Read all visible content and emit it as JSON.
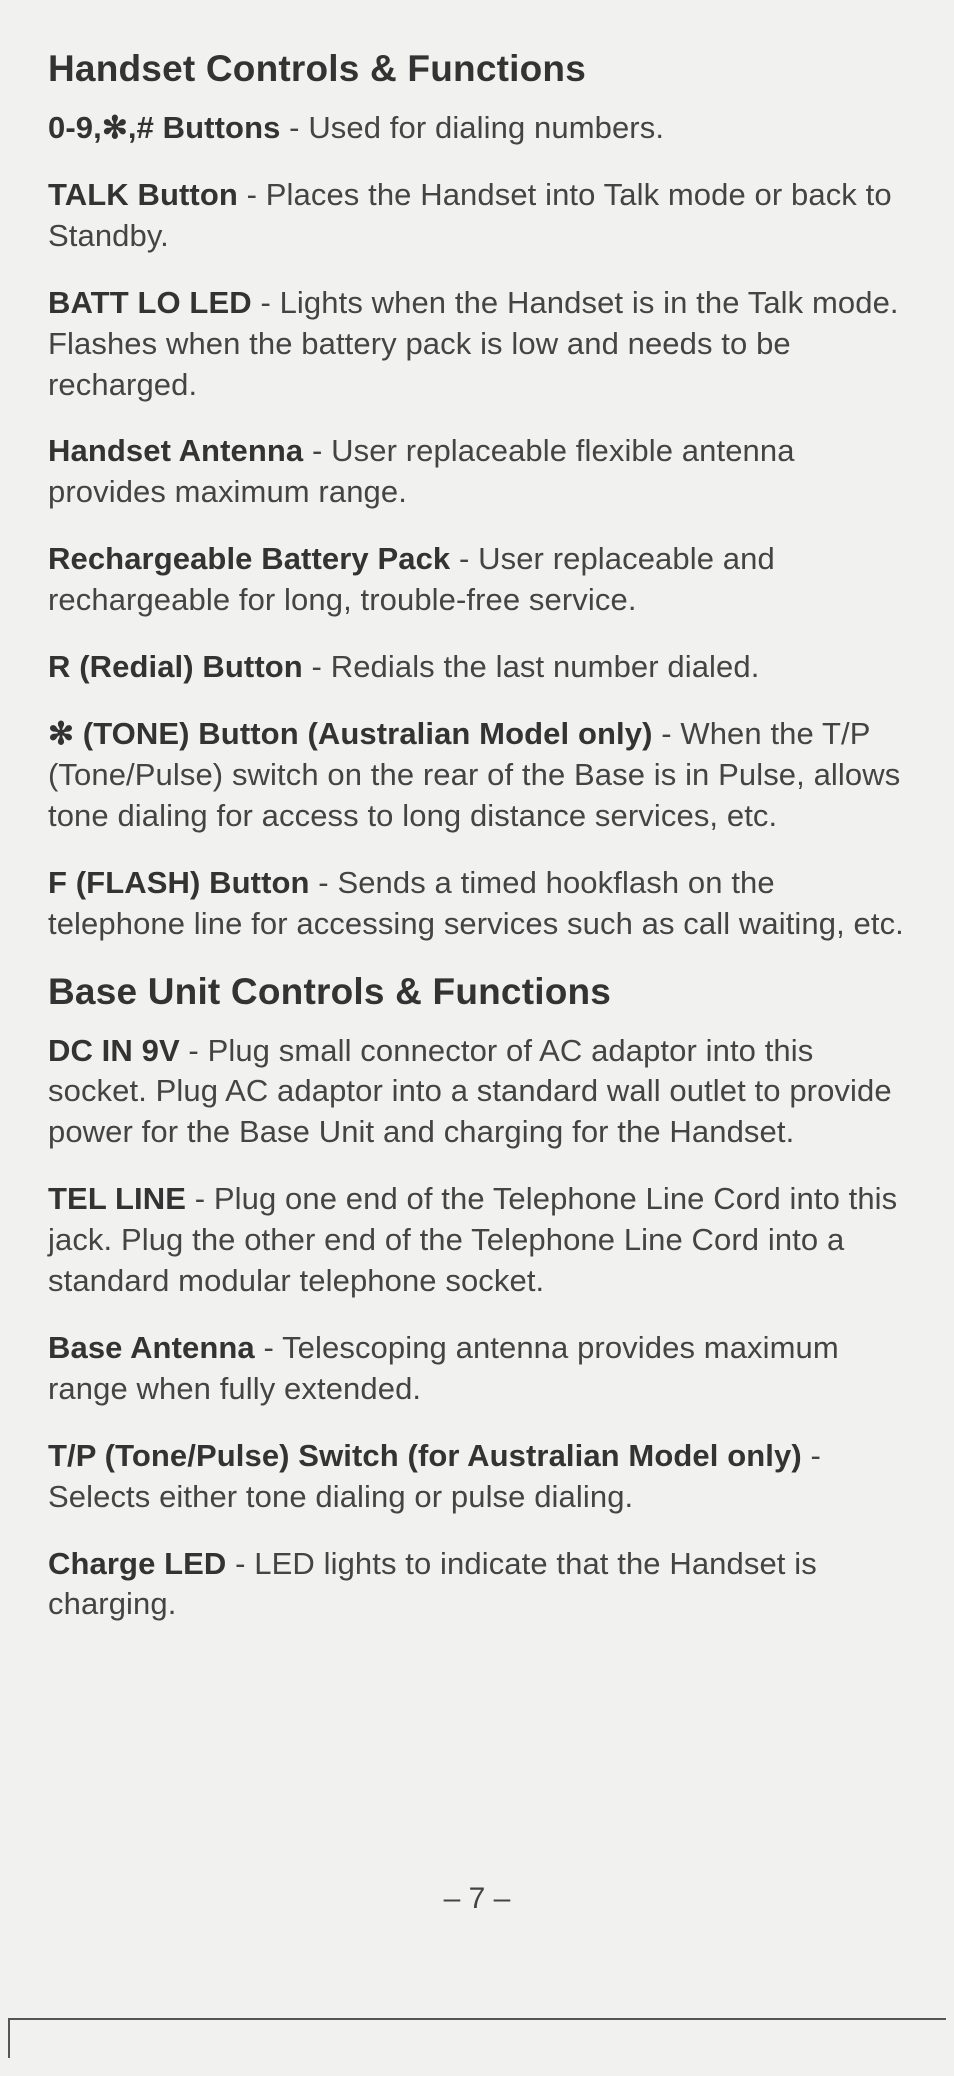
{
  "page": {
    "number": "– 7 –",
    "background": "#f1f1ef",
    "text_color": "#3a3a3a",
    "heading_color": "#333333",
    "font_family": "Arial, Helvetica, sans-serif",
    "heading_fontsize": 37,
    "body_fontsize": 31
  },
  "sections": [
    {
      "title": "Handset Controls & Functions",
      "entries": [
        {
          "term": "0-9,✻,# Buttons",
          "sep": " -  ",
          "desc": "Used for dialing numbers."
        },
        {
          "term": "TALK Button",
          "sep": " - ",
          "desc": "Places the Handset into Talk mode or back to Standby."
        },
        {
          "term": "BATT LO LED",
          "sep": " - ",
          "desc": "Lights when the Handset is in the Talk mode. Flashes when the battery pack is low and needs to be recharged."
        },
        {
          "term": "Handset Antenna",
          "sep": " - ",
          "desc": "User replaceable flexible antenna provides maximum range."
        },
        {
          "term": "Rechargeable Battery Pack",
          "sep": " - ",
          "desc": "User replaceable and rechargeable for long, trouble-free service."
        },
        {
          "term": "R (Redial) Button",
          "sep": " - ",
          "desc": "Redials the last number dialed."
        },
        {
          "term": "✻  (TONE) Button (Australian Model only)",
          "sep": " - ",
          "desc": "When the T/P (Tone/Pulse) switch on the rear of the Base is in Pulse, allows tone dialing for access to long distance services, etc."
        },
        {
          "term": "F (FLASH) Button",
          "sep": " - ",
          "desc": "Sends a timed hookflash on the telephone line for accessing services such as call waiting, etc."
        }
      ]
    },
    {
      "title": "Base Unit Controls & Functions",
      "entries": [
        {
          "term": "DC IN 9V",
          "sep": " - ",
          "desc": "Plug small connector of AC adaptor into this socket. Plug AC adaptor into a standard wall outlet to provide power for the Base Unit and charging for the Handset."
        },
        {
          "term": "TEL LINE",
          "sep": " - ",
          "desc": "Plug one end of the Telephone Line Cord into this jack. Plug the other end of the Telephone Line Cord into a standard modular telephone socket."
        },
        {
          "term": "Base Antenna",
          "sep": " - ",
          "desc": "Telescoping antenna provides maximum range when fully extended."
        },
        {
          "term": "T/P (Tone/Pulse) Switch (for Australian Model only)",
          "sep": " - ",
          "desc": "Selects either tone dialing or pulse dialing."
        },
        {
          "term": "Charge LED",
          "sep": " - ",
          "desc": "LED lights to indicate that the Handset is charging."
        }
      ]
    }
  ]
}
